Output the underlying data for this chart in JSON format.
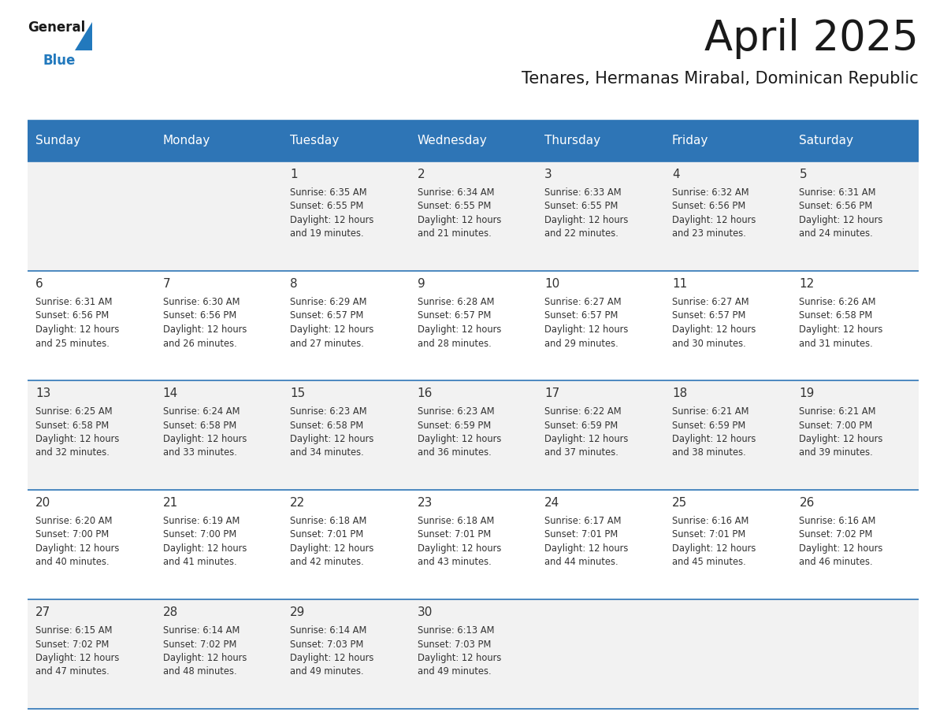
{
  "title": "April 2025",
  "subtitle": "Tenares, Hermanas Mirabal, Dominican Republic",
  "header_bg_color": "#2E75B6",
  "header_text_color": "#FFFFFF",
  "day_names": [
    "Sunday",
    "Monday",
    "Tuesday",
    "Wednesday",
    "Thursday",
    "Friday",
    "Saturday"
  ],
  "odd_row_bg": "#F2F2F2",
  "even_row_bg": "#FFFFFF",
  "cell_border_color": "#2E75B6",
  "title_color": "#1A1A1A",
  "subtitle_color": "#1A1A1A",
  "day_num_color": "#333333",
  "cell_text_color": "#333333",
  "logo_general_color": "#1A1A1A",
  "logo_blue_color": "#2279BD",
  "weeks": [
    [
      {
        "day": null,
        "sunrise": null,
        "sunset": null,
        "daylight_min": null
      },
      {
        "day": null,
        "sunrise": null,
        "sunset": null,
        "daylight_min": null
      },
      {
        "day": 1,
        "sunrise": "6:35 AM",
        "sunset": "6:55 PM",
        "daylight_min": 19
      },
      {
        "day": 2,
        "sunrise": "6:34 AM",
        "sunset": "6:55 PM",
        "daylight_min": 21
      },
      {
        "day": 3,
        "sunrise": "6:33 AM",
        "sunset": "6:55 PM",
        "daylight_min": 22
      },
      {
        "day": 4,
        "sunrise": "6:32 AM",
        "sunset": "6:56 PM",
        "daylight_min": 23
      },
      {
        "day": 5,
        "sunrise": "6:31 AM",
        "sunset": "6:56 PM",
        "daylight_min": 24
      }
    ],
    [
      {
        "day": 6,
        "sunrise": "6:31 AM",
        "sunset": "6:56 PM",
        "daylight_min": 25
      },
      {
        "day": 7,
        "sunrise": "6:30 AM",
        "sunset": "6:56 PM",
        "daylight_min": 26
      },
      {
        "day": 8,
        "sunrise": "6:29 AM",
        "sunset": "6:57 PM",
        "daylight_min": 27
      },
      {
        "day": 9,
        "sunrise": "6:28 AM",
        "sunset": "6:57 PM",
        "daylight_min": 28
      },
      {
        "day": 10,
        "sunrise": "6:27 AM",
        "sunset": "6:57 PM",
        "daylight_min": 29
      },
      {
        "day": 11,
        "sunrise": "6:27 AM",
        "sunset": "6:57 PM",
        "daylight_min": 30
      },
      {
        "day": 12,
        "sunrise": "6:26 AM",
        "sunset": "6:58 PM",
        "daylight_min": 31
      }
    ],
    [
      {
        "day": 13,
        "sunrise": "6:25 AM",
        "sunset": "6:58 PM",
        "daylight_min": 32
      },
      {
        "day": 14,
        "sunrise": "6:24 AM",
        "sunset": "6:58 PM",
        "daylight_min": 33
      },
      {
        "day": 15,
        "sunrise": "6:23 AM",
        "sunset": "6:58 PM",
        "daylight_min": 34
      },
      {
        "day": 16,
        "sunrise": "6:23 AM",
        "sunset": "6:59 PM",
        "daylight_min": 36
      },
      {
        "day": 17,
        "sunrise": "6:22 AM",
        "sunset": "6:59 PM",
        "daylight_min": 37
      },
      {
        "day": 18,
        "sunrise": "6:21 AM",
        "sunset": "6:59 PM",
        "daylight_min": 38
      },
      {
        "day": 19,
        "sunrise": "6:21 AM",
        "sunset": "7:00 PM",
        "daylight_min": 39
      }
    ],
    [
      {
        "day": 20,
        "sunrise": "6:20 AM",
        "sunset": "7:00 PM",
        "daylight_min": 40
      },
      {
        "day": 21,
        "sunrise": "6:19 AM",
        "sunset": "7:00 PM",
        "daylight_min": 41
      },
      {
        "day": 22,
        "sunrise": "6:18 AM",
        "sunset": "7:01 PM",
        "daylight_min": 42
      },
      {
        "day": 23,
        "sunrise": "6:18 AM",
        "sunset": "7:01 PM",
        "daylight_min": 43
      },
      {
        "day": 24,
        "sunrise": "6:17 AM",
        "sunset": "7:01 PM",
        "daylight_min": 44
      },
      {
        "day": 25,
        "sunrise": "6:16 AM",
        "sunset": "7:01 PM",
        "daylight_min": 45
      },
      {
        "day": 26,
        "sunrise": "6:16 AM",
        "sunset": "7:02 PM",
        "daylight_min": 46
      }
    ],
    [
      {
        "day": 27,
        "sunrise": "6:15 AM",
        "sunset": "7:02 PM",
        "daylight_min": 47
      },
      {
        "day": 28,
        "sunrise": "6:14 AM",
        "sunset": "7:02 PM",
        "daylight_min": 48
      },
      {
        "day": 29,
        "sunrise": "6:14 AM",
        "sunset": "7:03 PM",
        "daylight_min": 49
      },
      {
        "day": 30,
        "sunrise": "6:13 AM",
        "sunset": "7:03 PM",
        "daylight_min": 49
      },
      {
        "day": null,
        "sunrise": null,
        "sunset": null,
        "daylight_min": null
      },
      {
        "day": null,
        "sunrise": null,
        "sunset": null,
        "daylight_min": null
      },
      {
        "day": null,
        "sunrise": null,
        "sunset": null,
        "daylight_min": null
      }
    ]
  ]
}
